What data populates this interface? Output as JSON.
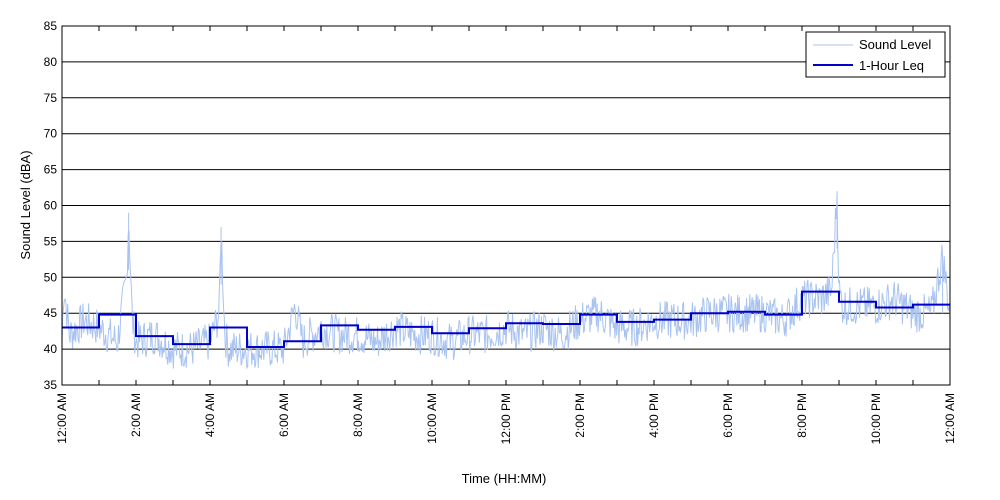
{
  "chart_data": {
    "type": "line",
    "title": "",
    "xlabel": "Time (HH:MM)",
    "ylabel": "Sound Level (dBA)",
    "ylim": [
      35,
      85
    ],
    "yticks": [
      35,
      40,
      45,
      50,
      55,
      60,
      65,
      70,
      75,
      80,
      85
    ],
    "xlim_hours": [
      0,
      24
    ],
    "xtick_labels": [
      "12:00 AM",
      "2:00 AM",
      "4:00 AM",
      "6:00 AM",
      "8:00 AM",
      "10:00 AM",
      "12:00 PM",
      "2:00 PM",
      "4:00 PM",
      "6:00 PM",
      "8:00 PM",
      "10:00 PM",
      "12:00 AM"
    ],
    "grid": "horizontal",
    "legend_position": "top-right",
    "colors": {
      "sound_level": "#a9c3f0",
      "leq": "#0000cc"
    },
    "series": [
      {
        "name": "Sound Level",
        "style": "thin light-blue fluctuating line",
        "hour_x": [
          0,
          0.05,
          0.2,
          0.6,
          1.0,
          1.5,
          1.75,
          1.8,
          1.9,
          2.0,
          2.5,
          3.0,
          3.5,
          4.0,
          4.25,
          4.3,
          4.4,
          4.5,
          5.0,
          5.5,
          6.0,
          6.3,
          6.5,
          7.0,
          7.5,
          8.0,
          8.5,
          9.0,
          9.5,
          10.0,
          10.5,
          11.0,
          11.5,
          12.0,
          12.5,
          13.0,
          13.5,
          14.0,
          14.5,
          15.0,
          15.5,
          16.0,
          16.5,
          17.0,
          17.5,
          18.0,
          18.5,
          19.0,
          19.5,
          20.0,
          20.5,
          20.8,
          20.95,
          21.0,
          21.1,
          21.5,
          22.0,
          22.5,
          23.0,
          23.5,
          23.8,
          24.0
        ],
        "values": [
          41,
          49,
          42,
          44,
          43,
          41,
          50,
          59,
          44,
          41,
          42,
          40,
          40,
          41,
          45,
          57,
          42,
          40,
          40,
          40,
          40,
          46,
          41,
          43,
          42,
          42,
          41,
          43,
          42,
          42,
          41,
          42,
          42,
          43,
          42,
          43,
          42,
          44,
          45,
          43,
          43,
          44,
          44,
          44,
          45,
          45,
          45,
          45,
          44,
          47,
          47,
          48,
          62,
          48,
          46,
          46,
          46,
          47,
          45,
          45,
          53,
          45
        ]
      },
      {
        "name": "1-Hour Leq",
        "style": "thick dark-blue step line",
        "values": [
          43.0,
          44.8,
          41.8,
          40.7,
          43.0,
          40.3,
          41.1,
          43.3,
          42.7,
          43.1,
          42.2,
          42.9,
          43.6,
          43.5,
          44.8,
          43.8,
          44.1,
          45.0,
          45.2,
          44.8,
          48.0,
          46.6,
          45.8,
          46.2
        ]
      }
    ]
  }
}
